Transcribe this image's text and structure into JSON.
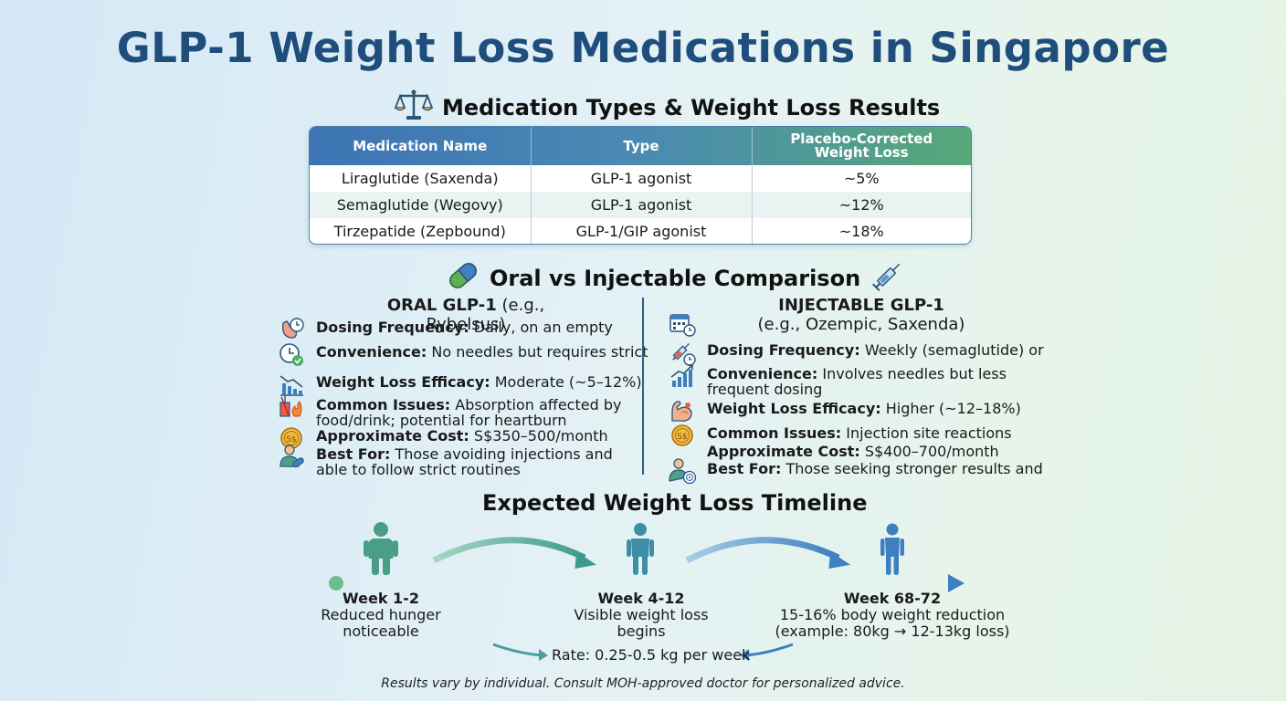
{
  "title": "GLP-1 Weight Loss Medications in Singapore",
  "med_section": {
    "heading": "Medication Types & Weight Loss Results",
    "icon": "scales-icon",
    "columns": [
      "Medication Name",
      "Type",
      "Placebo-Corrected Weight Loss"
    ],
    "rows": [
      {
        "name": "Liraglutide (Saxenda)",
        "type": "GLP-1 agonist",
        "loss": "~5%"
      },
      {
        "name": "Semaglutide (Wegovy)",
        "type": "GLP-1 agonist",
        "loss": "~12%"
      },
      {
        "name": "Tirzepatide (Zepbound)",
        "type": "GLP-1/GIP agonist",
        "loss": "~18%"
      }
    ]
  },
  "comparison": {
    "heading": "Oral vs Injectable Comparison",
    "icons": [
      "pill-icon",
      "syringe-icon"
    ],
    "oral": {
      "title": "ORAL GLP-1",
      "subtitle": "(e.g., Rybelsus)",
      "items": [
        {
          "icon": "stomach-clock-icon",
          "label": "Dosing Frequency:",
          "text": "Daily, on an empty"
        },
        {
          "icon": "clock-check-icon",
          "label": "Convenience:",
          "text": "No needles but requires strict"
        },
        {
          "icon": "chart-down-icon",
          "label": "Weight Loss Efficacy:",
          "text": "Moderate (~5–12%)"
        },
        {
          "icon": "food-drink-icon",
          "label": "Common Issues:",
          "text": "Absorption affected by",
          "text2": "food/drink; potential for heartburn"
        },
        {
          "icon": "coin-icon",
          "label": "Approximate Cost:",
          "text": "S$350–500/month"
        },
        {
          "icon": "person-pill-icon",
          "label": "Best For:",
          "text": "Those avoiding injections and",
          "text2": "able to follow strict routines"
        }
      ]
    },
    "injectable": {
      "title": "INJECTABLE GLP-1",
      "subtitle": "(e.g., Ozempic, Saxenda)",
      "items": [
        {
          "icon": "calendar-clock-icon",
          "label": "",
          "text": ""
        },
        {
          "icon": "syringe-clock-icon",
          "label": "Dosing Frequency:",
          "text": "Weekly (semaglutide) or"
        },
        {
          "icon": "chart-up-icon",
          "label": "Convenience:",
          "text": "Involves needles but less",
          "text2": "frequent dosing"
        },
        {
          "icon": "muscle-arm-icon",
          "label": "Weight Loss Efficacy:",
          "text": "Higher (~12–18%)"
        },
        {
          "icon": "coin-icon",
          "label": "Common Issues:",
          "text": "Injection site reactions"
        },
        {
          "icon": "",
          "label": "Approximate Cost:",
          "text": "S$400–700/month"
        },
        {
          "icon": "person-target-icon",
          "label": "Best For:",
          "text": "Those seeking stronger results and"
        }
      ]
    }
  },
  "timeline": {
    "heading": "Expected Weight Loss Timeline",
    "stages": [
      {
        "week": "Week 1-2",
        "line1": "Reduced hunger",
        "line2": "noticeable",
        "icon": "person-large-icon"
      },
      {
        "week": "Week 4-12",
        "line1": "Visible weight loss",
        "line2": "begins",
        "icon": "person-medium-icon"
      },
      {
        "week": "Week 68-72",
        "line1": "15-16% body weight reduction",
        "line2": "(example: 80kg → 12-13kg loss)",
        "icon": "person-slim-icon"
      }
    ],
    "rate": "Rate: 0.25-0.5 kg per week"
  },
  "disclaimer": "Results vary by individual. Consult MOH-approved doctor for personalized advice.",
  "colors": {
    "title": "#1f4e7d",
    "table_header_start": "#3d74b4",
    "table_header_end": "#57a878",
    "timeline_green": "#4a9e86",
    "timeline_blue": "#3d7fc0"
  }
}
